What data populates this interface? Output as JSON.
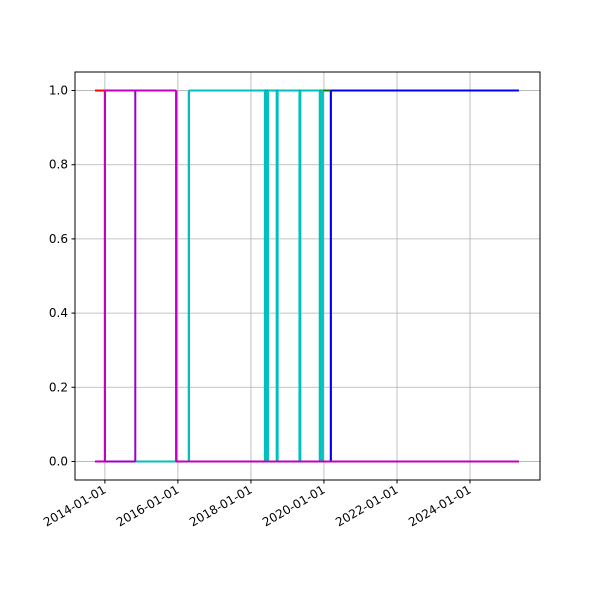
{
  "chart_data": {
    "type": "line",
    "drawstyle": "steps-post",
    "grid": true,
    "xlim": [
      "2013-03-08",
      "2025-12-01"
    ],
    "xticks": [
      "2014-01-01",
      "2016-01-01",
      "2018-01-01",
      "2020-01-01",
      "2022-01-01",
      "2024-01-01"
    ],
    "ylim": [
      -0.05,
      1.05
    ],
    "yticks": [
      {
        "value": 0,
        "label": "0.0"
      },
      {
        "value": 0.2,
        "label": "0.2"
      },
      {
        "value": 0.4,
        "label": "0.4"
      },
      {
        "value": 0.6,
        "label": "0.6"
      },
      {
        "value": 0.8,
        "label": "0.8"
      },
      {
        "value": 1,
        "label": "1.0"
      }
    ],
    "series": [
      {
        "color": "#ff0000",
        "x": [
          "2013-09-24",
          "2014-01-01",
          "2025-05-04"
        ],
        "values": [
          1,
          0,
          0
        ]
      },
      {
        "color": "#008000",
        "x": [
          "2013-09-24",
          "2016-04-20",
          "2020-03-10",
          "2025-05-04"
        ],
        "values": [
          0,
          1,
          0,
          0
        ]
      },
      {
        "color": "#0000ff",
        "x": [
          "2013-09-24",
          "2020-03-10",
          "2025-05-04"
        ],
        "values": [
          0,
          1,
          1
        ]
      },
      {
        "color": "#00bfbf",
        "x": [
          "2013-09-24",
          "2016-04-20",
          "2018-05-20",
          "2018-06-01",
          "2018-06-10",
          "2018-06-20",
          "2018-09-15",
          "2018-09-25",
          "2019-05-01",
          "2019-05-10",
          "2019-11-20",
          "2019-12-01",
          "2019-12-20",
          "2025-05-04"
        ],
        "values": [
          0,
          1,
          0,
          1,
          0,
          1,
          0,
          1,
          0,
          1,
          0,
          1,
          0,
          0
        ]
      },
      {
        "color": "#9900cc",
        "x": [
          "2013-09-24",
          "2014-11-01",
          "2015-12-15",
          "2025-05-04"
        ],
        "values": [
          0,
          1,
          0,
          0
        ]
      },
      {
        "color": "#bf00bf",
        "x": [
          "2013-09-24",
          "2014-01-01",
          "2015-12-15",
          "2025-05-04"
        ],
        "values": [
          0,
          1,
          0,
          0
        ]
      }
    ]
  }
}
